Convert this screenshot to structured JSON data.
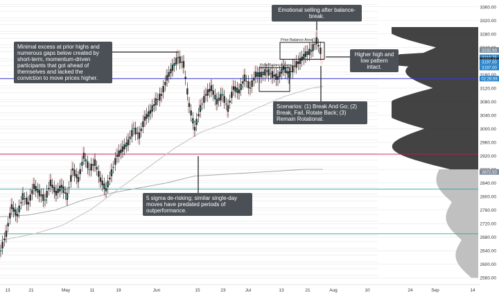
{
  "chart_data": {
    "type": "candlestick",
    "instrument_hint": "S&P 500 futures (daily)",
    "x_axis": {
      "tick_labels": [
        "13",
        "21",
        "May",
        "11",
        "19",
        "Jun",
        "15",
        "23",
        "Jul",
        "13",
        "21",
        "Aug",
        "10",
        "24",
        "Sep",
        "14"
      ]
    },
    "y_axis": {
      "range": [
        2540,
        3380
      ],
      "tick_labels": [
        2560,
        2600,
        2640,
        2680,
        2720,
        2760,
        2800,
        2840,
        2880,
        2920,
        2960,
        3000,
        3040,
        3080,
        3120,
        3160,
        3200,
        3240,
        3280,
        3320,
        3360
      ]
    },
    "price_badges": [
      {
        "label": "3232.50",
        "value": 3232.5,
        "color": "#7f8c99"
      },
      {
        "label": "3210.75",
        "value": 3210.75,
        "color": "#2a84c9"
      },
      {
        "label": "3202.00",
        "value": 3202,
        "color": "#222222"
      },
      {
        "label": "3197.00",
        "value": 3197,
        "color": "#2a84c9"
      },
      {
        "label": "3197.00",
        "value": 3197,
        "color": "#2a84c9"
      },
      {
        "label": "02:26:59",
        "value": 3148,
        "color": "#2a84c9"
      },
      {
        "label": "2872.50",
        "value": 2872.5,
        "color": "#7f8c99"
      }
    ],
    "reference_lines": [
      {
        "value": 3148,
        "color": "#3b3bd6",
        "label": "blue level"
      },
      {
        "value": 2925,
        "color": "#c2185b",
        "label": "magenta level"
      },
      {
        "value": 2822,
        "color": "#26a69a",
        "label": "teal level"
      },
      {
        "value": 2690,
        "color": "#26a69a",
        "label": "teal level 2"
      }
    ],
    "price_path": [
      [
        0,
        2640
      ],
      [
        8,
        2690
      ],
      [
        16,
        2770
      ],
      [
        24,
        2745
      ],
      [
        32,
        2800
      ],
      [
        40,
        2780
      ],
      [
        48,
        2830
      ],
      [
        56,
        2810
      ],
      [
        64,
        2790
      ],
      [
        72,
        2840
      ],
      [
        80,
        2810
      ],
      [
        88,
        2830
      ],
      [
        96,
        2800
      ],
      [
        104,
        2880
      ],
      [
        112,
        2850
      ],
      [
        120,
        2920
      ],
      [
        128,
        2880
      ],
      [
        136,
        2900
      ],
      [
        144,
        2850
      ],
      [
        152,
        2820
      ],
      [
        160,
        2870
      ],
      [
        168,
        2920
      ],
      [
        176,
        2940
      ],
      [
        184,
        2960
      ],
      [
        192,
        3000
      ],
      [
        200,
        2980
      ],
      [
        208,
        3030
      ],
      [
        216,
        3050
      ],
      [
        224,
        3080
      ],
      [
        232,
        3100
      ],
      [
        240,
        3150
      ],
      [
        248,
        3180
      ],
      [
        256,
        3210
      ],
      [
        264,
        3190
      ],
      [
        272,
        3070
      ],
      [
        280,
        3000
      ],
      [
        288,
        3060
      ],
      [
        296,
        3100
      ],
      [
        304,
        3120
      ],
      [
        312,
        3080
      ],
      [
        320,
        3100
      ],
      [
        328,
        3060
      ],
      [
        336,
        3120
      ],
      [
        344,
        3110
      ],
      [
        352,
        3150
      ],
      [
        360,
        3120
      ],
      [
        368,
        3160
      ],
      [
        376,
        3160
      ],
      [
        384,
        3170
      ],
      [
        392,
        3160
      ],
      [
        400,
        3150
      ],
      [
        408,
        3180
      ],
      [
        416,
        3160
      ],
      [
        424,
        3185
      ],
      [
        432,
        3200
      ],
      [
        440,
        3220
      ],
      [
        448,
        3230
      ],
      [
        456,
        3260
      ],
      [
        464,
        3215
      ]
    ],
    "value_area_band": {
      "color": "#f5b5b5"
    },
    "moving_average": {
      "color": "#c9c9c9",
      "points": [
        [
          0,
          2670
        ],
        [
          50,
          2690
        ],
        [
          90,
          2715
        ],
        [
          130,
          2760
        ],
        [
          170,
          2820
        ],
        [
          210,
          2880
        ],
        [
          250,
          2940
        ],
        [
          290,
          2990
        ],
        [
          330,
          3020
        ],
        [
          370,
          3060
        ],
        [
          410,
          3095
        ],
        [
          450,
          3120
        ],
        [
          466,
          3125
        ]
      ]
    },
    "lower_indicator": {
      "color": "#aaaaaa",
      "points": [
        [
          0,
          2740
        ],
        [
          40,
          2745
        ],
        [
          80,
          2760
        ],
        [
          120,
          2790
        ],
        [
          160,
          2810
        ],
        [
          200,
          2825
        ],
        [
          240,
          2840
        ],
        [
          280,
          2860
        ],
        [
          320,
          2865
        ],
        [
          360,
          2870
        ],
        [
          400,
          2875
        ],
        [
          440,
          2880
        ],
        [
          466,
          2880
        ]
      ]
    },
    "volume_profile": {
      "dark_range": [
        2880,
        3300
      ],
      "light_range": [
        2560,
        2880
      ]
    },
    "boxes": [
      {
        "label": "Prior Balance Area",
        "x0": 374,
        "x1": 418,
        "y0": 3180,
        "y1": 3110
      },
      {
        "label": "Prior Balance Area",
        "x0": 404,
        "x1": 468,
        "y0": 3255,
        "y1": 3205
      }
    ],
    "annotations": [
      {
        "id": "emotional-selling",
        "text": "Emotional selling after balance-break."
      },
      {
        "id": "minimal-excess",
        "text": "Minimal excess at prior highs and numerous gaps below created by short-term, momentum-driven participants that got ahead of themselves and lacked the conviction to move prices higher."
      },
      {
        "id": "higher-high",
        "text": "Higher high and low pattern intact."
      },
      {
        "id": "scenarios",
        "text": "Scenarios: (1) Break And Go; (2) Break, Fail, Rotate Back; (3) Remain Rotational."
      },
      {
        "id": "sigma-derisking",
        "text": "5 sigma de-risking; similar single-day moves have predated periods of outperformance."
      }
    ],
    "colors": {
      "axis_text": "#333333",
      "grid": "#e6e6e6",
      "candle_up": "#2b2b2b",
      "candle_down": "#2b2b2b",
      "callout_bg": "#4a5056",
      "volume_dark": "#222222",
      "volume_light": "#b9b9b9"
    }
  }
}
